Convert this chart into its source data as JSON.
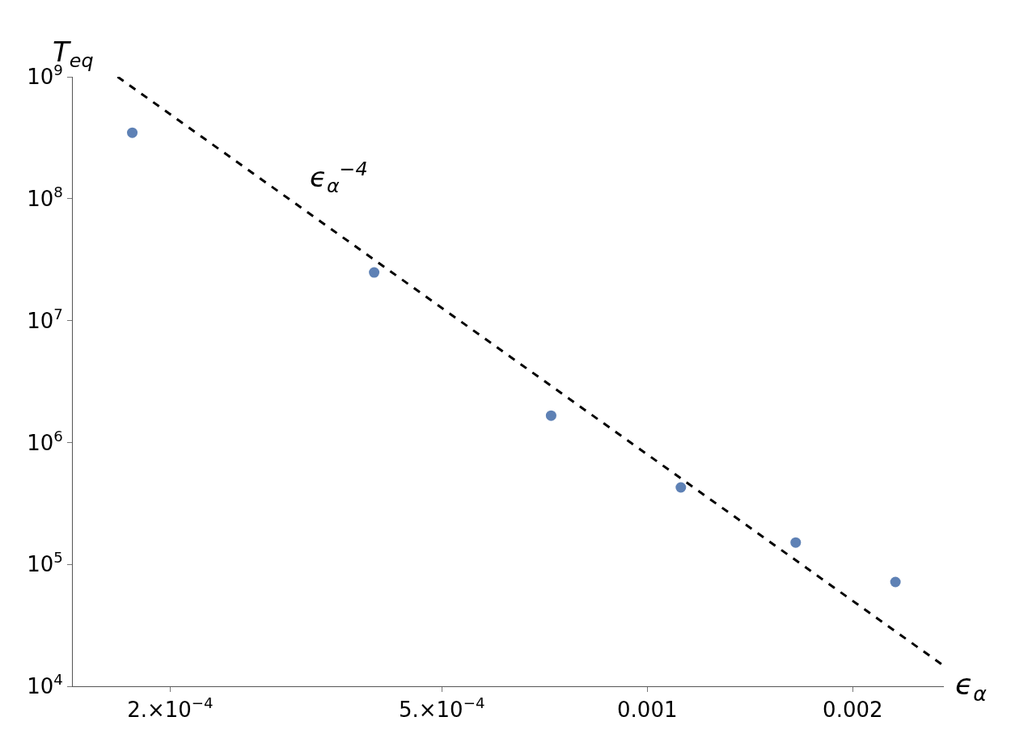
{
  "chart_data": {
    "type": "scatter",
    "xlabel": "ϵ$_{α}$",
    "ylabel": "T$_{eq}$",
    "log": "xy",
    "marker": "circle",
    "xlim": [
      0.000144,
      0.00272
    ],
    "ylim": [
      10000,
      1000000000
    ],
    "xticks": [
      {
        "value": 0.0002,
        "label": "2.×10$^{−4}$"
      },
      {
        "value": 0.0005,
        "label": "5.×10$^{−4}$"
      },
      0.001,
      0.002
    ],
    "yticks": [
      {
        "value": 10000,
        "label": "10$^{4}$"
      },
      {
        "value": 100000,
        "label": "10$^{5}$"
      },
      {
        "value": 1000000,
        "label": "10$^{6}$"
      },
      {
        "value": 10000000,
        "label": "10$^{7}$"
      },
      {
        "value": 100000000,
        "label": "10$^{8}$"
      },
      {
        "value": 1000000000,
        "label": "10$^{9}$"
      }
    ],
    "x": [
      0.000176,
      0.000398,
      0.000723,
      0.00112,
      0.00165,
      0.00231
    ],
    "series": [
      {
        "color": "#5e81b5",
        "values": [
          348000000,
          24800000,
          1660000,
          428000,
          151000,
          71700
        ]
      },
      {
        "type": "line",
        "color": "#000000",
        "line_style": "dashed",
        "marker": "none",
        "x": [
          0.0001675,
          0.00272
        ],
        "values": [
          1000000000,
          14700
        ]
      }
    ],
    "annotations": [
      "ϵ$_{α}$$^{−4}$"
    ]
  }
}
